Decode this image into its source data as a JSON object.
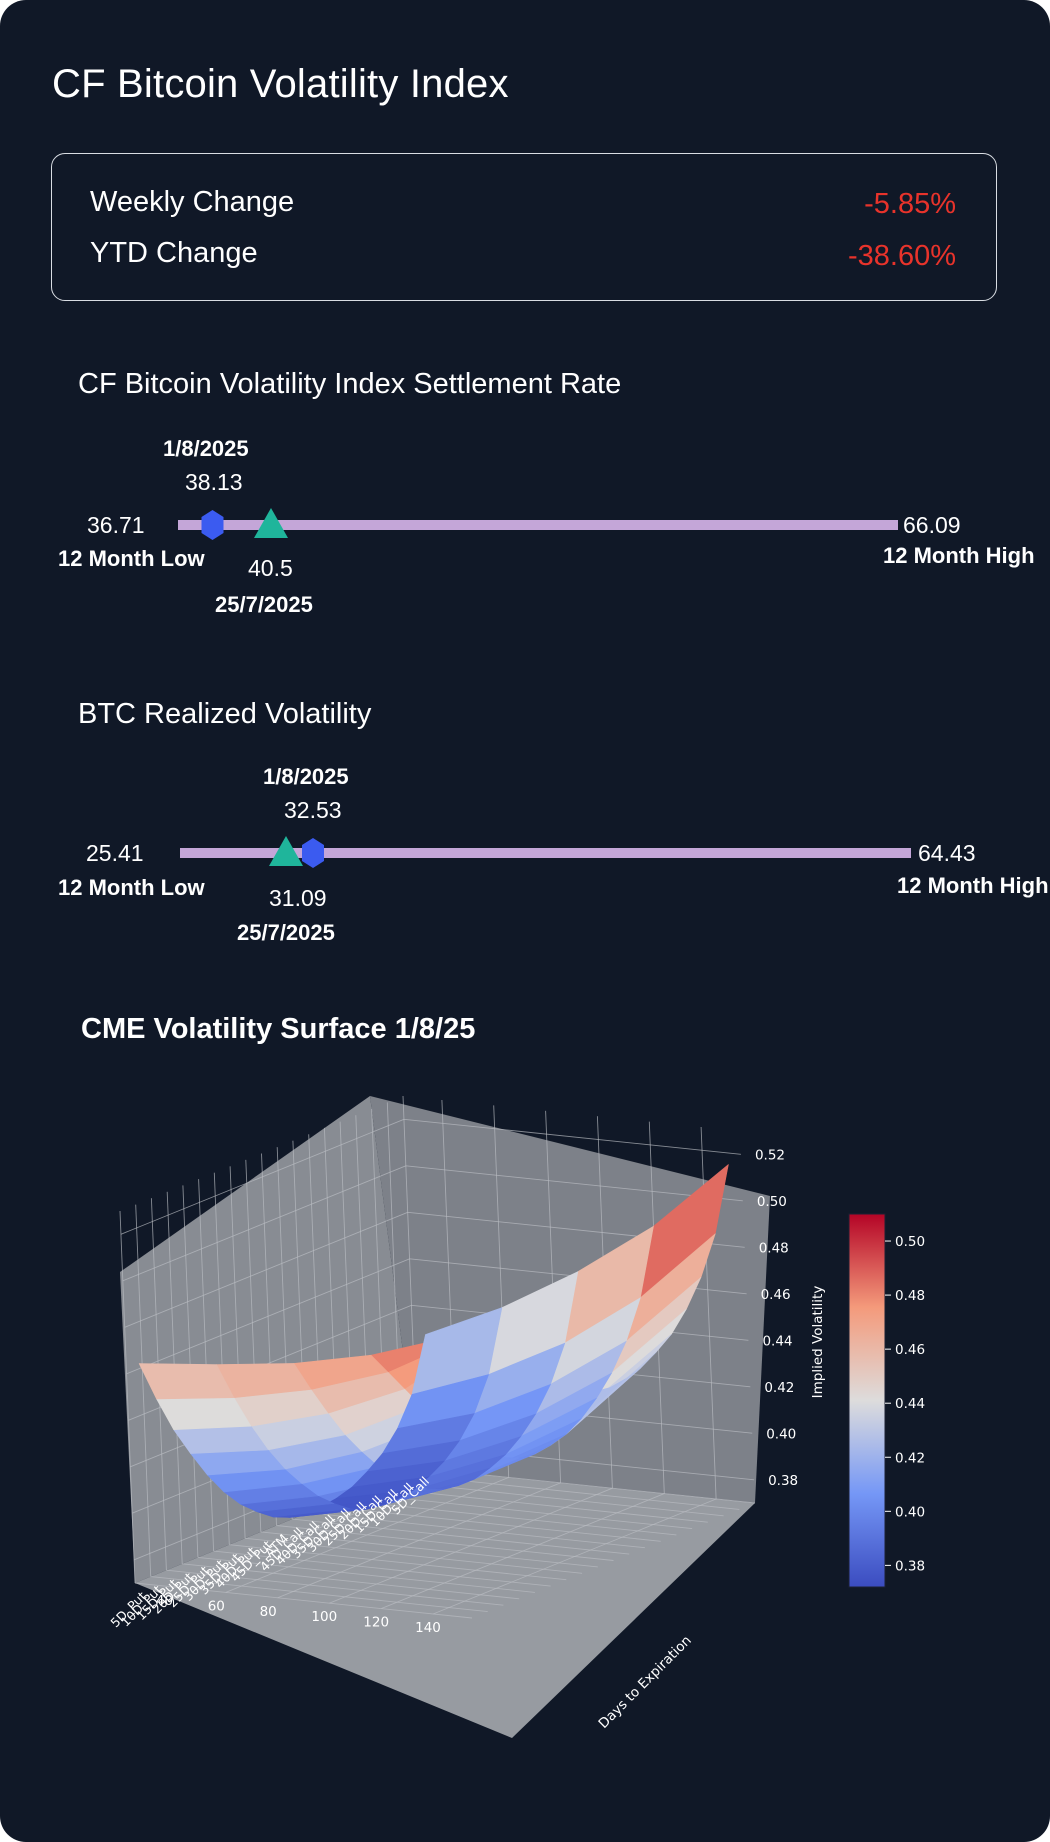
{
  "title": "CF Bitcoin Volatility Index",
  "changes": {
    "weekly_label": "Weekly Change",
    "weekly_value": "-5.85%",
    "ytd_label": "YTD Change",
    "ytd_value": "-38.60%",
    "negative_color": "#e8332b"
  },
  "range1": {
    "title": "CF Bitcoin Volatility Index Settlement Rate",
    "low": "36.71",
    "low_label": "12 Month Low",
    "high": "66.09",
    "high_label": "12 Month High",
    "current_date": "1/8/2025",
    "current_value": "38.13",
    "prior_date": "25/7/2025",
    "prior_value": "40.5"
  },
  "range2": {
    "title": "BTC Realized Volatility",
    "low": "25.41",
    "low_label": "12 Month Low",
    "high": "64.43",
    "high_label": "12 Month High",
    "current_date": "1/8/2025",
    "current_value": "32.53",
    "prior_date": "25/7/2025",
    "prior_value": "31.09"
  },
  "colors": {
    "current_marker": "#3b5bf0",
    "prior_marker": "#1fb59b",
    "range_bar": "#c4a6d8"
  },
  "chart_data": {
    "type": "surface",
    "title": "CME Volatility Surface 1/8/25",
    "x_label": "",
    "y_label": "Days to Expiration",
    "z_label": "Implied Volatility",
    "strikes": [
      "5D_Put",
      "10D_Put",
      "15D_Put",
      "20D_Put",
      "25D_Put",
      "30D_Put",
      "35D_Put",
      "40D_Put",
      "45D_Put",
      "ATM",
      "45D_Call",
      "40D_Call",
      "35D_Call",
      "30D_Call",
      "25D_Call",
      "20D_Call",
      "15D_Call",
      "10D_Call",
      "5D_Call"
    ],
    "days": [
      30,
      60,
      90,
      120,
      150
    ],
    "day_ticks": [
      "40",
      "60",
      "80",
      "100",
      "120",
      "140"
    ],
    "z_ticks": [
      "0.38",
      "0.40",
      "0.42",
      "0.44",
      "0.46",
      "0.48",
      "0.50",
      "0.52"
    ],
    "zlim": [
      0.37,
      0.53
    ],
    "colorbar_ticks": [
      "0.38",
      "0.40",
      "0.42",
      "0.44",
      "0.46",
      "0.48",
      "0.50"
    ],
    "colorbar_range": [
      0.372,
      0.51
    ],
    "surface": [
      [
        0.465,
        0.447,
        0.431,
        0.418,
        0.406,
        0.396,
        0.388,
        0.382,
        0.377,
        0.374,
        0.373,
        0.373,
        0.374,
        0.376,
        0.38,
        0.385,
        0.393,
        0.405,
        0.428
      ],
      [
        0.468,
        0.451,
        0.436,
        0.423,
        0.412,
        0.403,
        0.395,
        0.389,
        0.384,
        0.381,
        0.38,
        0.38,
        0.381,
        0.384,
        0.388,
        0.394,
        0.403,
        0.417,
        0.443
      ],
      [
        0.472,
        0.458,
        0.445,
        0.433,
        0.423,
        0.414,
        0.406,
        0.4,
        0.396,
        0.393,
        0.392,
        0.392,
        0.394,
        0.397,
        0.402,
        0.409,
        0.419,
        0.434,
        0.462
      ],
      [
        0.479,
        0.469,
        0.459,
        0.449,
        0.439,
        0.43,
        0.423,
        0.417,
        0.413,
        0.41,
        0.409,
        0.41,
        0.412,
        0.416,
        0.422,
        0.43,
        0.441,
        0.457,
        0.485
      ],
      [
        0.49,
        0.487,
        0.484,
        0.478,
        0.47,
        0.462,
        0.455,
        0.449,
        0.445,
        0.442,
        0.441,
        0.442,
        0.444,
        0.448,
        0.453,
        0.461,
        0.472,
        0.488,
        0.515
      ]
    ]
  }
}
